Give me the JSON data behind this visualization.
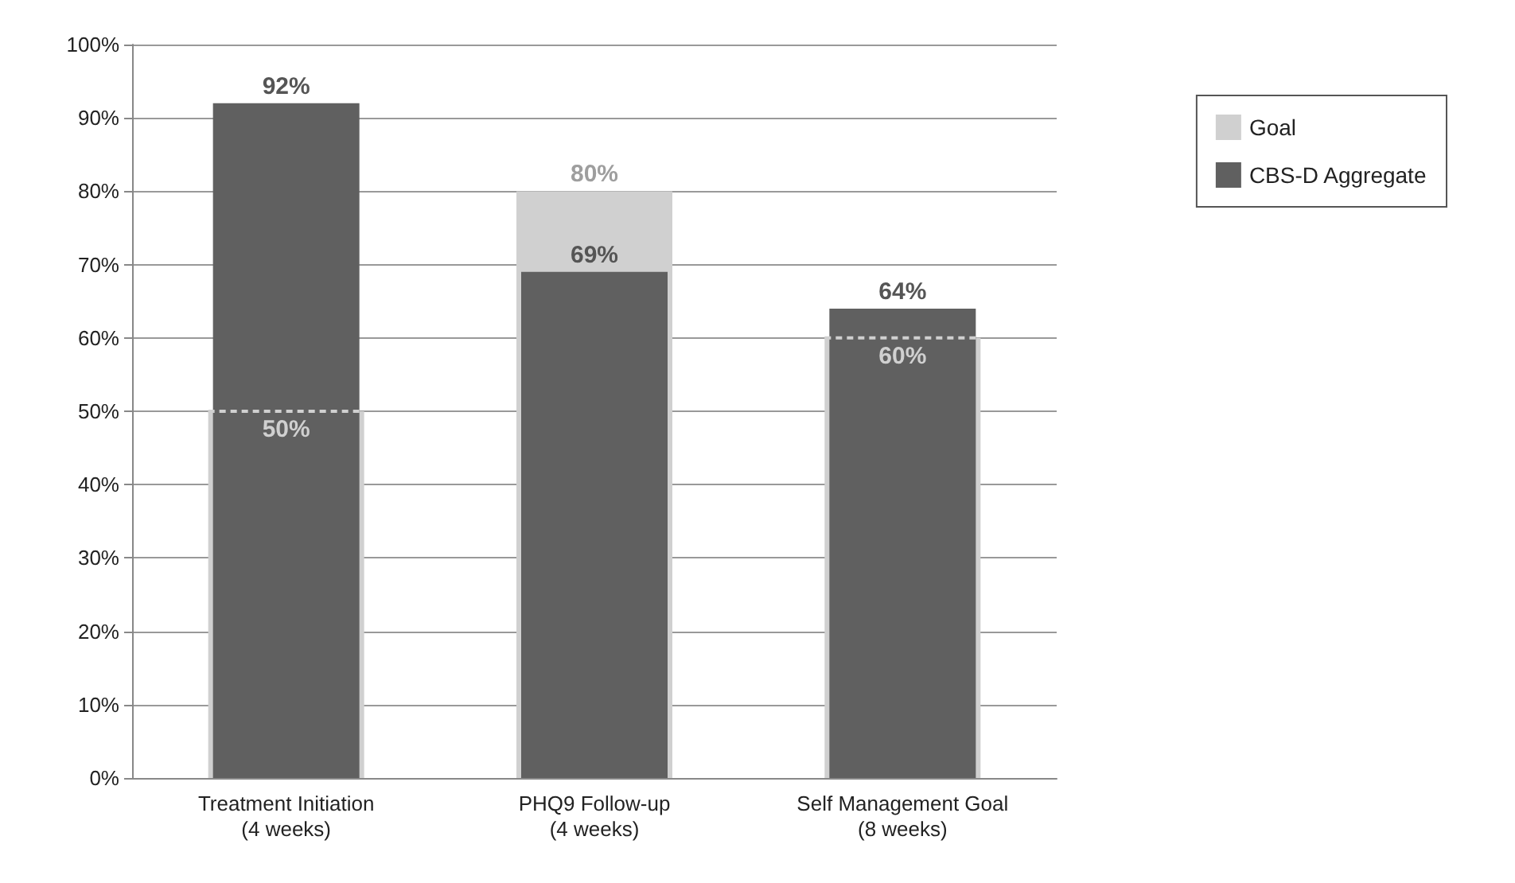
{
  "chart_data": {
    "type": "bar",
    "categories": [
      "Treatment Initiation\n(4 weeks)",
      "PHQ9 Follow-up\n(4 weeks)",
      "Self Management Goal\n(8 weeks)"
    ],
    "series": [
      {
        "name": "Goal",
        "color": "#d0d0d0",
        "values": [
          50,
          80,
          60
        ],
        "value_labels": [
          "50%",
          "80%",
          "60%"
        ]
      },
      {
        "name": "CBS-D Aggregate",
        "color": "#606060",
        "values": [
          92,
          69,
          64
        ],
        "value_labels": [
          "92%",
          "69%",
          "64%"
        ]
      }
    ],
    "ylim": [
      0,
      100
    ],
    "yticks": [
      {
        "value": 0,
        "label": "0%"
      },
      {
        "value": 10,
        "label": "10%"
      },
      {
        "value": 20,
        "label": "20%"
      },
      {
        "value": 30,
        "label": "30%"
      },
      {
        "value": 40,
        "label": "40%"
      },
      {
        "value": 50,
        "label": "50%"
      },
      {
        "value": 60,
        "label": "60%"
      },
      {
        "value": 70,
        "label": "70%"
      },
      {
        "value": 80,
        "label": "80%"
      },
      {
        "value": 90,
        "label": "90%"
      },
      {
        "value": 100,
        "label": "100%"
      }
    ],
    "grid": "y",
    "legend": "top right"
  }
}
